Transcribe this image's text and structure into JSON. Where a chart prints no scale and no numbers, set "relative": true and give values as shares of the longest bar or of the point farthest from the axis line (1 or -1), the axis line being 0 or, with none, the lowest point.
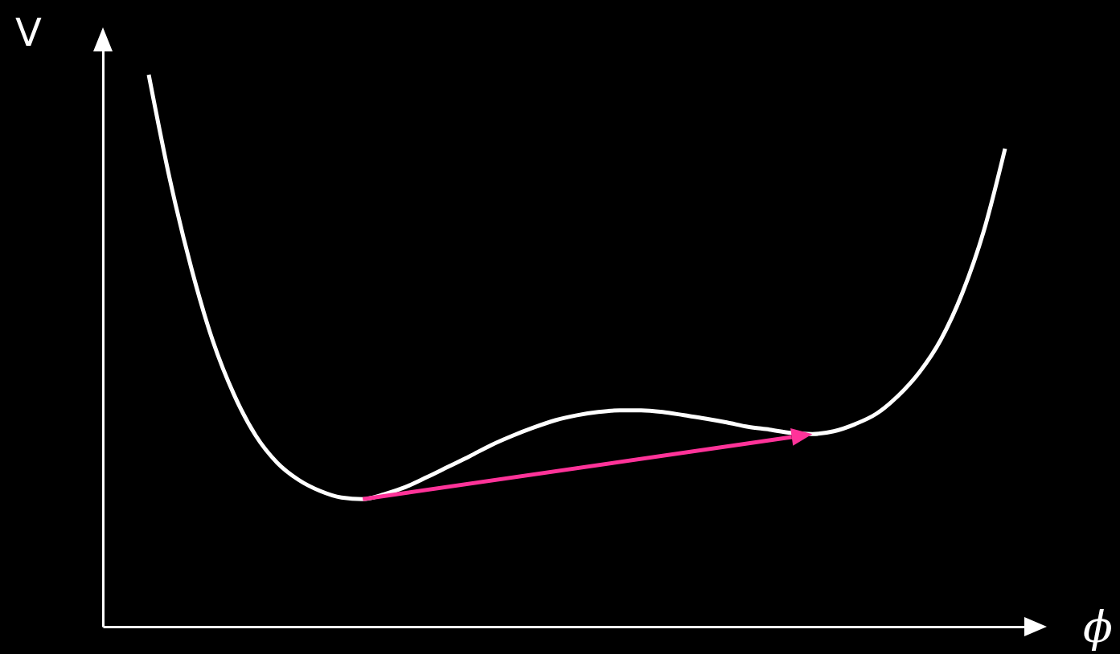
{
  "chart_data": {
    "type": "line",
    "relative": true,
    "xlabel": "ϕ",
    "ylabel": "V",
    "categories": [
      null,
      null,
      null,
      null,
      null,
      null,
      null,
      null,
      null,
      null,
      null,
      null,
      null,
      null,
      null,
      null,
      null,
      null,
      null,
      null,
      null,
      null,
      null,
      null,
      null,
      null,
      null,
      null,
      null,
      null,
      null,
      null,
      null,
      null,
      null,
      null,
      null,
      null,
      null,
      null,
      null
    ],
    "series": [
      {
        "color": "#ffffff",
        "values": [
          1,
          0.808,
          0.648,
          0.517,
          0.419,
          0.346,
          0.297,
          0.266,
          0.246,
          0.234,
          0.231,
          0.24,
          0.253,
          0.271,
          0.29,
          0.309,
          0.329,
          0.346,
          0.361,
          0.374,
          0.383,
          0.389,
          0.392,
          0.392,
          0.389,
          0.383,
          0.377,
          0.37,
          0.362,
          0.357,
          0.351,
          0.349,
          0.354,
          0.367,
          0.386,
          0.418,
          0.461,
          0.52,
          0.604,
          0.716,
          0.866
        ]
      }
    ]
  }
}
